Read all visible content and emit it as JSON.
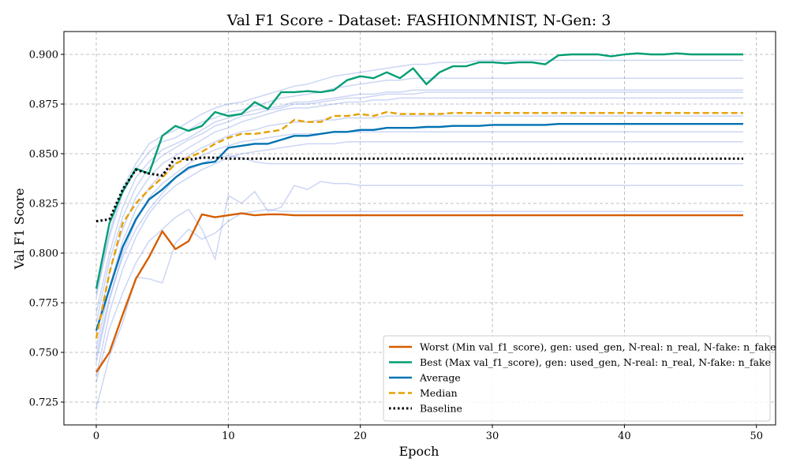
{
  "chart_data": {
    "type": "line",
    "title": "Val F1 Score - Dataset: FASHIONMNIST, N-Gen: 3",
    "xlabel": "Epoch",
    "ylabel": "Val F1 Score",
    "xlim": [
      -2.45,
      51.45
    ],
    "ylim": [
      0.7135,
      0.9115
    ],
    "xticks": [
      0,
      10,
      20,
      30,
      40,
      50
    ],
    "yticks": [
      0.725,
      0.75,
      0.775,
      0.8,
      0.825,
      0.85,
      0.875,
      0.9
    ],
    "xtick_labels": [
      "0",
      "10",
      "20",
      "30",
      "40",
      "50"
    ],
    "ytick_labels": [
      "0.725",
      "0.750",
      "0.775",
      "0.800",
      "0.825",
      "0.850",
      "0.875",
      "0.900"
    ],
    "grid": true,
    "legend_position": "bottom-right",
    "x": [
      0,
      1,
      2,
      3,
      4,
      5,
      6,
      7,
      8,
      9,
      10,
      11,
      12,
      13,
      14,
      15,
      16,
      17,
      18,
      19,
      20,
      21,
      22,
      23,
      24,
      25,
      26,
      27,
      28,
      29,
      30,
      31,
      32,
      33,
      34,
      35,
      36,
      37,
      38,
      39,
      40,
      41,
      42,
      43,
      44,
      45,
      46,
      47,
      48,
      49
    ],
    "series": [
      {
        "name": "Worst (Min val_f1_score), gen: used_gen, N-real: n_real, N-fake: n_fake",
        "color": "#d55e00",
        "style": "solid",
        "values": [
          0.74,
          0.75,
          0.769,
          0.787,
          0.798,
          0.811,
          0.802,
          0.806,
          0.8195,
          0.818,
          0.819,
          0.82,
          0.819,
          0.8195,
          0.8195,
          0.819,
          0.819,
          0.819,
          0.819,
          0.819,
          0.819,
          0.819,
          0.819,
          0.819,
          0.819,
          0.819,
          0.819,
          0.819,
          0.819,
          0.819,
          0.819,
          0.819,
          0.819,
          0.819,
          0.819,
          0.819,
          0.819,
          0.819,
          0.819,
          0.819,
          0.819,
          0.819,
          0.819,
          0.819,
          0.819,
          0.819,
          0.819,
          0.819,
          0.819,
          0.819
        ]
      },
      {
        "name": "Best (Max val_f1_score), gen: used_gen, N-real: n_real, N-fake: n_fake",
        "color": "#009e73",
        "style": "solid",
        "values": [
          0.782,
          0.815,
          0.831,
          0.8425,
          0.84,
          0.859,
          0.864,
          0.8615,
          0.864,
          0.871,
          0.869,
          0.87,
          0.876,
          0.8725,
          0.881,
          0.881,
          0.8815,
          0.881,
          0.882,
          0.887,
          0.889,
          0.888,
          0.891,
          0.888,
          0.893,
          0.885,
          0.891,
          0.894,
          0.894,
          0.896,
          0.896,
          0.8955,
          0.896,
          0.896,
          0.895,
          0.8995,
          0.9,
          0.9,
          0.9,
          0.899,
          0.9,
          0.9005,
          0.9,
          0.9,
          0.9005,
          0.9,
          0.9,
          0.9,
          0.9,
          0.9
        ]
      },
      {
        "name": "Average",
        "color": "#0072b2",
        "style": "solid",
        "values": [
          0.761,
          0.782,
          0.803,
          0.817,
          0.827,
          0.832,
          0.838,
          0.843,
          0.845,
          0.846,
          0.853,
          0.854,
          0.855,
          0.855,
          0.857,
          0.859,
          0.859,
          0.86,
          0.861,
          0.861,
          0.862,
          0.862,
          0.863,
          0.863,
          0.863,
          0.8635,
          0.8635,
          0.864,
          0.864,
          0.864,
          0.8645,
          0.8645,
          0.8645,
          0.8645,
          0.8645,
          0.865,
          0.865,
          0.865,
          0.865,
          0.865,
          0.865,
          0.865,
          0.865,
          0.865,
          0.865,
          0.865,
          0.865,
          0.865,
          0.865,
          0.865
        ]
      },
      {
        "name": "Median",
        "color": "#e69f00",
        "style": "dashed",
        "values": [
          0.757,
          0.79,
          0.815,
          0.825,
          0.832,
          0.838,
          0.845,
          0.848,
          0.851,
          0.855,
          0.858,
          0.86,
          0.86,
          0.861,
          0.862,
          0.867,
          0.866,
          0.866,
          0.869,
          0.869,
          0.87,
          0.869,
          0.871,
          0.87,
          0.87,
          0.87,
          0.87,
          0.8705,
          0.8705,
          0.8705,
          0.8705,
          0.8705,
          0.8705,
          0.8705,
          0.8705,
          0.8705,
          0.8705,
          0.8705,
          0.8705,
          0.8705,
          0.8705,
          0.8705,
          0.8705,
          0.8705,
          0.8705,
          0.8705,
          0.8705,
          0.8705,
          0.8705,
          0.8705
        ]
      },
      {
        "name": "Baseline",
        "color": "#000000",
        "style": "dotted",
        "values": [
          0.816,
          0.817,
          0.832,
          0.842,
          0.84,
          0.839,
          0.848,
          0.847,
          0.848,
          0.848,
          0.8475,
          0.8475,
          0.8475,
          0.8475,
          0.8475,
          0.8475,
          0.8475,
          0.8475,
          0.8475,
          0.8475,
          0.8475,
          0.8475,
          0.8475,
          0.8475,
          0.8475,
          0.8475,
          0.8475,
          0.8475,
          0.8475,
          0.8475,
          0.8475,
          0.8475,
          0.8475,
          0.8475,
          0.8475,
          0.8475,
          0.8475,
          0.8475,
          0.8475,
          0.8475,
          0.8475,
          0.8475,
          0.8475,
          0.8475,
          0.8475,
          0.8475,
          0.8475,
          0.8475,
          0.8475,
          0.8475
        ]
      }
    ],
    "background_runs": {
      "color": "#5577dd",
      "values": [
        [
          0.78,
          0.81,
          0.833,
          0.845,
          0.855,
          0.859,
          0.862,
          0.866,
          0.87,
          0.873,
          0.875,
          0.876,
          0.878,
          0.88,
          0.882,
          0.884,
          0.885,
          0.887,
          0.889,
          0.89,
          0.891,
          0.892,
          0.893,
          0.894,
          0.895,
          0.895,
          0.896,
          0.896,
          0.896,
          0.897,
          0.897,
          0.897,
          0.897,
          0.897,
          0.897,
          0.897,
          0.897,
          0.897,
          0.897,
          0.897,
          0.897,
          0.897,
          0.897,
          0.897,
          0.897,
          0.897,
          0.897,
          0.897,
          0.897,
          0.897
        ],
        [
          0.778,
          0.808,
          0.83,
          0.842,
          0.851,
          0.856,
          0.858,
          0.862,
          0.866,
          0.868,
          0.871,
          0.872,
          0.874,
          0.876,
          0.878,
          0.879,
          0.88,
          0.881,
          0.883,
          0.884,
          0.885,
          0.886,
          0.887,
          0.887,
          0.888,
          0.888,
          0.888,
          0.888,
          0.888,
          0.888,
          0.888,
          0.888,
          0.888,
          0.888,
          0.888,
          0.888,
          0.888,
          0.888,
          0.888,
          0.888,
          0.888,
          0.888,
          0.888,
          0.888,
          0.888,
          0.888,
          0.888,
          0.888,
          0.888,
          0.888
        ],
        [
          0.77,
          0.8,
          0.823,
          0.838,
          0.846,
          0.852,
          0.855,
          0.858,
          0.862,
          0.866,
          0.868,
          0.87,
          0.872,
          0.873,
          0.874,
          0.876,
          0.876,
          0.877,
          0.878,
          0.879,
          0.88,
          0.88,
          0.881,
          0.881,
          0.882,
          0.882,
          0.882,
          0.882,
          0.882,
          0.882,
          0.882,
          0.882,
          0.882,
          0.882,
          0.882,
          0.882,
          0.882,
          0.882,
          0.882,
          0.882,
          0.882,
          0.882,
          0.882,
          0.882,
          0.882,
          0.882,
          0.882,
          0.882,
          0.882,
          0.882
        ],
        [
          0.765,
          0.796,
          0.818,
          0.833,
          0.843,
          0.849,
          0.853,
          0.857,
          0.86,
          0.864,
          0.866,
          0.869,
          0.87,
          0.872,
          0.873,
          0.875,
          0.875,
          0.876,
          0.877,
          0.878,
          0.878,
          0.879,
          0.88,
          0.88,
          0.88,
          0.881,
          0.881,
          0.881,
          0.881,
          0.881,
          0.881,
          0.881,
          0.881,
          0.881,
          0.881,
          0.881,
          0.881,
          0.881,
          0.881,
          0.881,
          0.881,
          0.881,
          0.881,
          0.881,
          0.881,
          0.881,
          0.881,
          0.881,
          0.881,
          0.881
        ],
        [
          0.76,
          0.79,
          0.812,
          0.828,
          0.838,
          0.845,
          0.849,
          0.853,
          0.857,
          0.861,
          0.863,
          0.866,
          0.868,
          0.87,
          0.872,
          0.873,
          0.873,
          0.874,
          0.875,
          0.876,
          0.876,
          0.877,
          0.877,
          0.878,
          0.878,
          0.878,
          0.878,
          0.878,
          0.878,
          0.878,
          0.878,
          0.878,
          0.878,
          0.878,
          0.878,
          0.878,
          0.878,
          0.878,
          0.878,
          0.878,
          0.878,
          0.878,
          0.878,
          0.878,
          0.878,
          0.878,
          0.878,
          0.878,
          0.878,
          0.878
        ],
        [
          0.752,
          0.783,
          0.806,
          0.822,
          0.833,
          0.84,
          0.845,
          0.849,
          0.853,
          0.856,
          0.859,
          0.861,
          0.862,
          0.864,
          0.865,
          0.866,
          0.866,
          0.867,
          0.867,
          0.868,
          0.868,
          0.868,
          0.869,
          0.869,
          0.869,
          0.869,
          0.869,
          0.869,
          0.869,
          0.869,
          0.869,
          0.869,
          0.869,
          0.869,
          0.869,
          0.869,
          0.869,
          0.869,
          0.869,
          0.869,
          0.869,
          0.869,
          0.869,
          0.869,
          0.869,
          0.869,
          0.869,
          0.869,
          0.869,
          0.869
        ],
        [
          0.745,
          0.776,
          0.8,
          0.816,
          0.828,
          0.835,
          0.84,
          0.845,
          0.849,
          0.852,
          0.854,
          0.856,
          0.857,
          0.858,
          0.859,
          0.86,
          0.86,
          0.86,
          0.861,
          0.861,
          0.861,
          0.861,
          0.861,
          0.861,
          0.861,
          0.861,
          0.861,
          0.861,
          0.861,
          0.861,
          0.861,
          0.861,
          0.861,
          0.861,
          0.861,
          0.861,
          0.861,
          0.861,
          0.861,
          0.861,
          0.861,
          0.861,
          0.861,
          0.861,
          0.861,
          0.861,
          0.861,
          0.861,
          0.861,
          0.861
        ],
        [
          0.738,
          0.77,
          0.792,
          0.808,
          0.82,
          0.828,
          0.834,
          0.838,
          0.842,
          0.845,
          0.848,
          0.85,
          0.851,
          0.852,
          0.853,
          0.854,
          0.855,
          0.855,
          0.855,
          0.856,
          0.856,
          0.856,
          0.856,
          0.856,
          0.856,
          0.856,
          0.856,
          0.856,
          0.856,
          0.856,
          0.856,
          0.856,
          0.856,
          0.856,
          0.856,
          0.856,
          0.856,
          0.856,
          0.856,
          0.856,
          0.856,
          0.856,
          0.856,
          0.856,
          0.856,
          0.856,
          0.856,
          0.856,
          0.856,
          0.856
        ],
        [
          0.748,
          0.778,
          0.798,
          0.812,
          0.822,
          0.83,
          0.838,
          0.842,
          0.845,
          0.848,
          0.849,
          0.848,
          0.846,
          0.845,
          0.845,
          0.845,
          0.845,
          0.845,
          0.845,
          0.845,
          0.845,
          0.845,
          0.845,
          0.845,
          0.845,
          0.845,
          0.845,
          0.845,
          0.845,
          0.845,
          0.845,
          0.845,
          0.845,
          0.845,
          0.845,
          0.845,
          0.845,
          0.845,
          0.845,
          0.845,
          0.845,
          0.845,
          0.845,
          0.845,
          0.845,
          0.845,
          0.845,
          0.845,
          0.845,
          0.845
        ],
        [
          0.735,
          0.762,
          0.78,
          0.795,
          0.806,
          0.812,
          0.818,
          0.822,
          0.812,
          0.797,
          0.829,
          0.825,
          0.831,
          0.821,
          0.823,
          0.834,
          0.832,
          0.836,
          0.835,
          0.835,
          0.834,
          0.834,
          0.834,
          0.834,
          0.834,
          0.834,
          0.834,
          0.834,
          0.834,
          0.834,
          0.834,
          0.834,
          0.834,
          0.834,
          0.834,
          0.834,
          0.834,
          0.834,
          0.834,
          0.834,
          0.834,
          0.834,
          0.834,
          0.834,
          0.834,
          0.834,
          0.834,
          0.834,
          0.834,
          0.834
        ],
        [
          0.722,
          0.748,
          0.765,
          0.788,
          0.787,
          0.785,
          0.805,
          0.812,
          0.807,
          0.81,
          0.816,
          0.82,
          0.821,
          0.822,
          0.821,
          0.821,
          0.821,
          0.821,
          0.821,
          0.821,
          0.821,
          0.821,
          0.821,
          0.821,
          0.821,
          0.821,
          0.821,
          0.821,
          0.821,
          0.821,
          0.821,
          0.821,
          0.821,
          0.821,
          0.821,
          0.821,
          0.821,
          0.821,
          0.821,
          0.821,
          0.821,
          0.821,
          0.821,
          0.821,
          0.821,
          0.821,
          0.821,
          0.821,
          0.821,
          0.821
        ]
      ]
    }
  }
}
